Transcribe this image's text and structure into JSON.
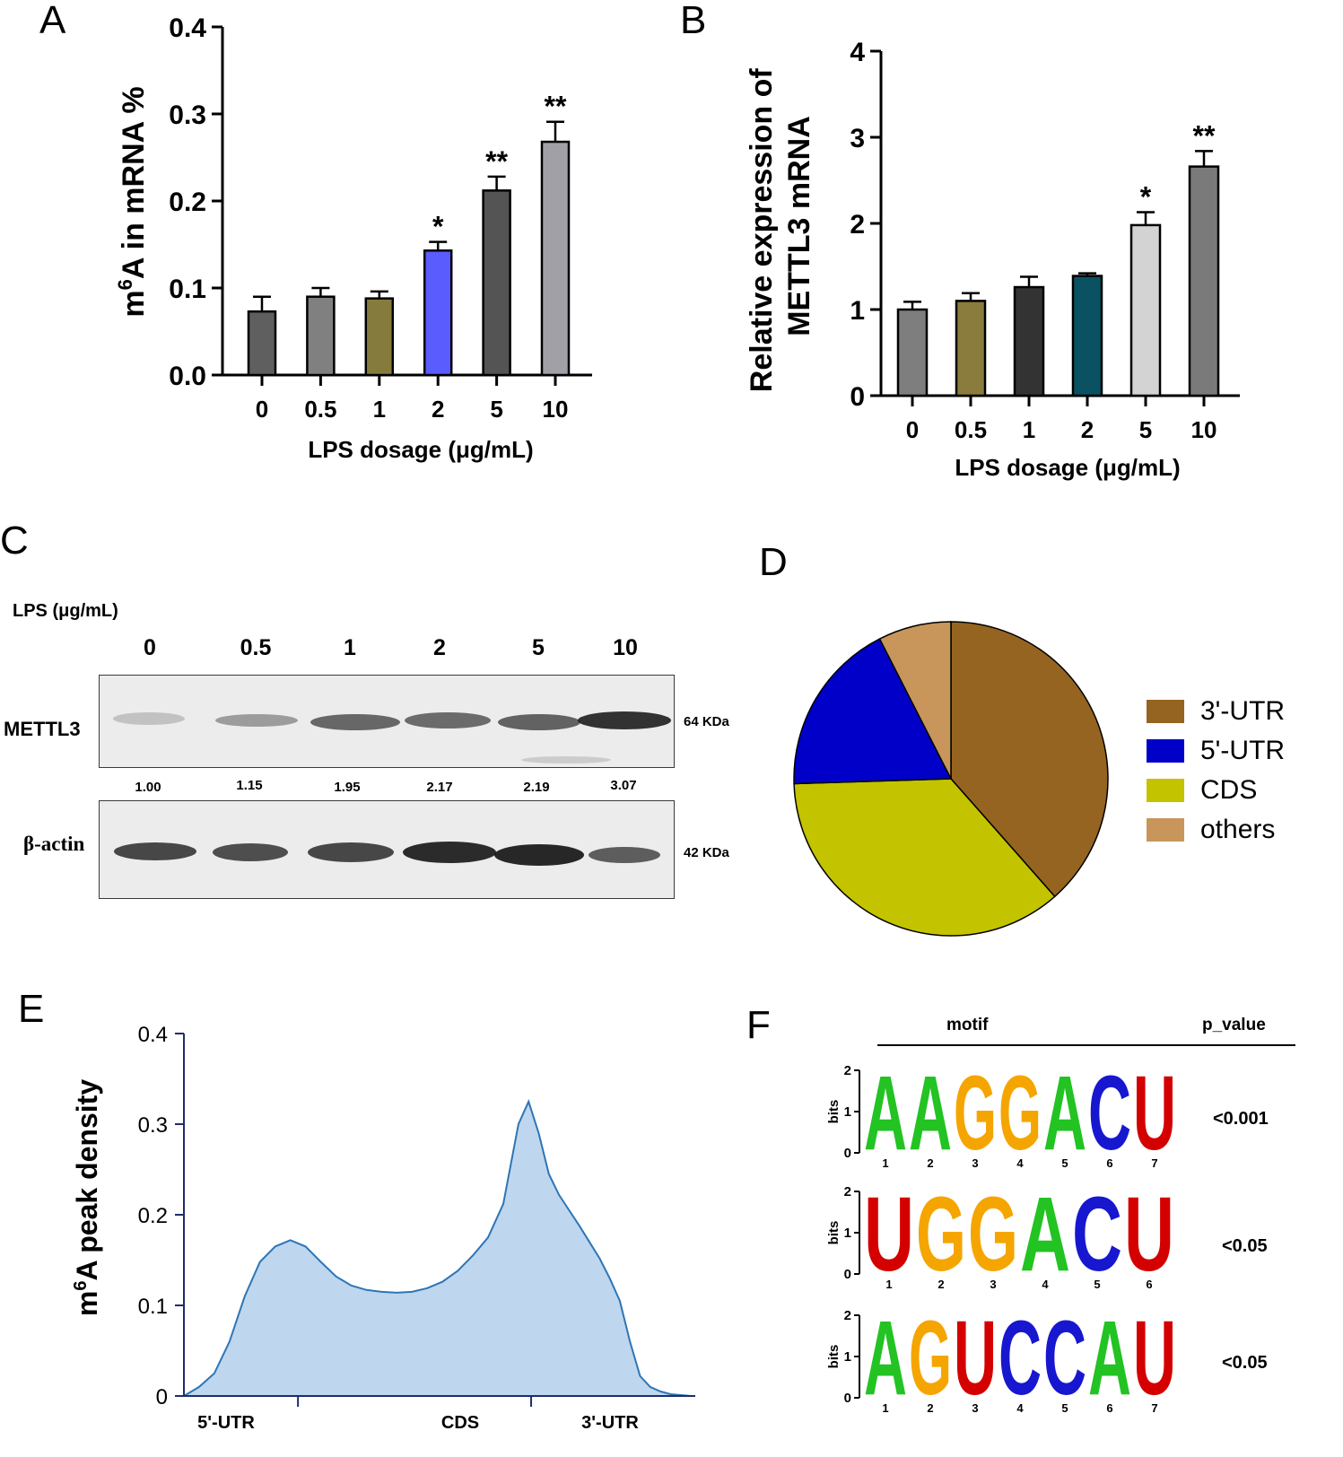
{
  "panel_letters": {
    "a": "A",
    "b": "B",
    "c": "C",
    "d": "D",
    "e": "E",
    "f": "F"
  },
  "chart_data": [
    {
      "panel": "A",
      "type": "bar",
      "title": "",
      "categories": [
        "0",
        "0.5",
        "1",
        "2",
        "5",
        "10"
      ],
      "values": [
        0.073,
        0.09,
        0.088,
        0.143,
        0.212,
        0.268
      ],
      "errors": [
        0.017,
        0.01,
        0.008,
        0.01,
        0.016,
        0.023
      ],
      "significance": [
        "",
        "",
        "",
        "*",
        "**",
        "**"
      ],
      "colors": [
        "#5f5f5f",
        "#808080",
        "#857b3c",
        "#5a5cfe",
        "#545454",
        "#a0a0a6"
      ],
      "xlabel": "LPS dosage (μg/mL)",
      "ylabel_prefix": "m",
      "ylabel_sup": "6",
      "ylabel_rest": "A in mRNA %",
      "yticks": [
        "0.0",
        "0.1",
        "0.2",
        "0.3",
        "0.4"
      ],
      "ylim": [
        0,
        0.4
      ],
      "grid": false
    },
    {
      "panel": "B",
      "type": "bar",
      "title": "",
      "categories": [
        "0",
        "0.5",
        "1",
        "2",
        "5",
        "10"
      ],
      "values": [
        1.0,
        1.1,
        1.26,
        1.39,
        1.98,
        2.66
      ],
      "errors": [
        0.09,
        0.09,
        0.12,
        0.03,
        0.15,
        0.18
      ],
      "significance": [
        "",
        "",
        "",
        "",
        "*",
        "**"
      ],
      "colors": [
        "#7e7e7e",
        "#8a7c3c",
        "#333333",
        "#0a5262",
        "#d3d3d3",
        "#7a7a7a"
      ],
      "xlabel": "LPS dosage (μg/mL)",
      "ylabel_line1": "Relative expression of",
      "ylabel_line2": "METTL3 mRNA",
      "yticks": [
        "0",
        "1",
        "2",
        "3",
        "4"
      ],
      "ylim": [
        0,
        4
      ],
      "grid": false
    },
    {
      "panel": "D",
      "type": "pie",
      "labels": [
        "3'-UTR",
        "CDS",
        "5'-UTR",
        "others"
      ],
      "values": [
        0.385,
        0.36,
        0.18,
        0.075
      ],
      "colors": [
        "#956420",
        "#c3c300",
        "#0000c8",
        "#c8955a"
      ],
      "legend_order": [
        "3'-UTR",
        "5'-UTR",
        "CDS",
        "others"
      ],
      "legend_placement": "right"
    },
    {
      "panel": "E",
      "type": "area",
      "ylabel_prefix": "m",
      "ylabel_sup": "6",
      "ylabel_rest": "A peak density",
      "yticks": [
        "0",
        "0.1",
        "0.2",
        "0.3",
        "0.4"
      ],
      "ylim": [
        0,
        0.4
      ],
      "region_labels": [
        "5'-UTR",
        "CDS",
        "3'-UTR"
      ],
      "x": [
        0,
        0.03,
        0.06,
        0.09,
        0.12,
        0.15,
        0.18,
        0.21,
        0.24,
        0.27,
        0.3,
        0.33,
        0.36,
        0.39,
        0.42,
        0.45,
        0.48,
        0.51,
        0.54,
        0.57,
        0.6,
        0.63,
        0.66,
        0.68,
        0.7,
        0.72,
        0.74,
        0.76,
        0.78,
        0.8,
        0.82,
        0.84,
        0.86,
        0.88,
        0.9,
        0.92,
        0.94,
        0.96,
        0.98,
        1.0
      ],
      "y": [
        0.0,
        0.01,
        0.025,
        0.06,
        0.11,
        0.148,
        0.165,
        0.172,
        0.165,
        0.148,
        0.132,
        0.122,
        0.117,
        0.115,
        0.114,
        0.115,
        0.119,
        0.126,
        0.138,
        0.155,
        0.175,
        0.212,
        0.3,
        0.325,
        0.29,
        0.245,
        0.222,
        0.205,
        0.188,
        0.17,
        0.152,
        0.13,
        0.105,
        0.06,
        0.022,
        0.01,
        0.005,
        0.002,
        0.001,
        0.0
      ],
      "fill_color": "#bed7ee",
      "line_color": "#2e75b6"
    }
  ],
  "western_blot": {
    "header": "LPS (μg/mL)",
    "lanes": [
      "0",
      "0.5",
      "1",
      "2",
      "5",
      "10"
    ],
    "rows": [
      {
        "label": "METTL3",
        "size": "64 KDa"
      },
      {
        "label": "β-actin",
        "size": "42 KDa"
      }
    ],
    "ratios": [
      "1.00",
      "1.15",
      "1.95",
      "2.17",
      "2.19",
      "3.07"
    ]
  },
  "motifs": {
    "header_motif": "motif",
    "header_pvalue": "p_value",
    "axis_label": "bits",
    "y_ticks": [
      "0",
      "1",
      "2"
    ],
    "colors": {
      "A": "#22c322",
      "C": "#1717d0",
      "G": "#f5a500",
      "U": "#d40000"
    },
    "rows": [
      {
        "sequence": "AAGGACU",
        "p_value": "<0.001",
        "positions": [
          "1",
          "2",
          "3",
          "4",
          "5",
          "6",
          "7"
        ]
      },
      {
        "sequence": "UGGACU",
        "p_value": "<0.05",
        "positions": [
          "1",
          "2",
          "3",
          "4",
          "5",
          "6"
        ]
      },
      {
        "sequence": "AGUCCAU",
        "p_value": "<0.05",
        "positions": [
          "1",
          "2",
          "3",
          "4",
          "5",
          "6",
          "7"
        ]
      }
    ]
  }
}
